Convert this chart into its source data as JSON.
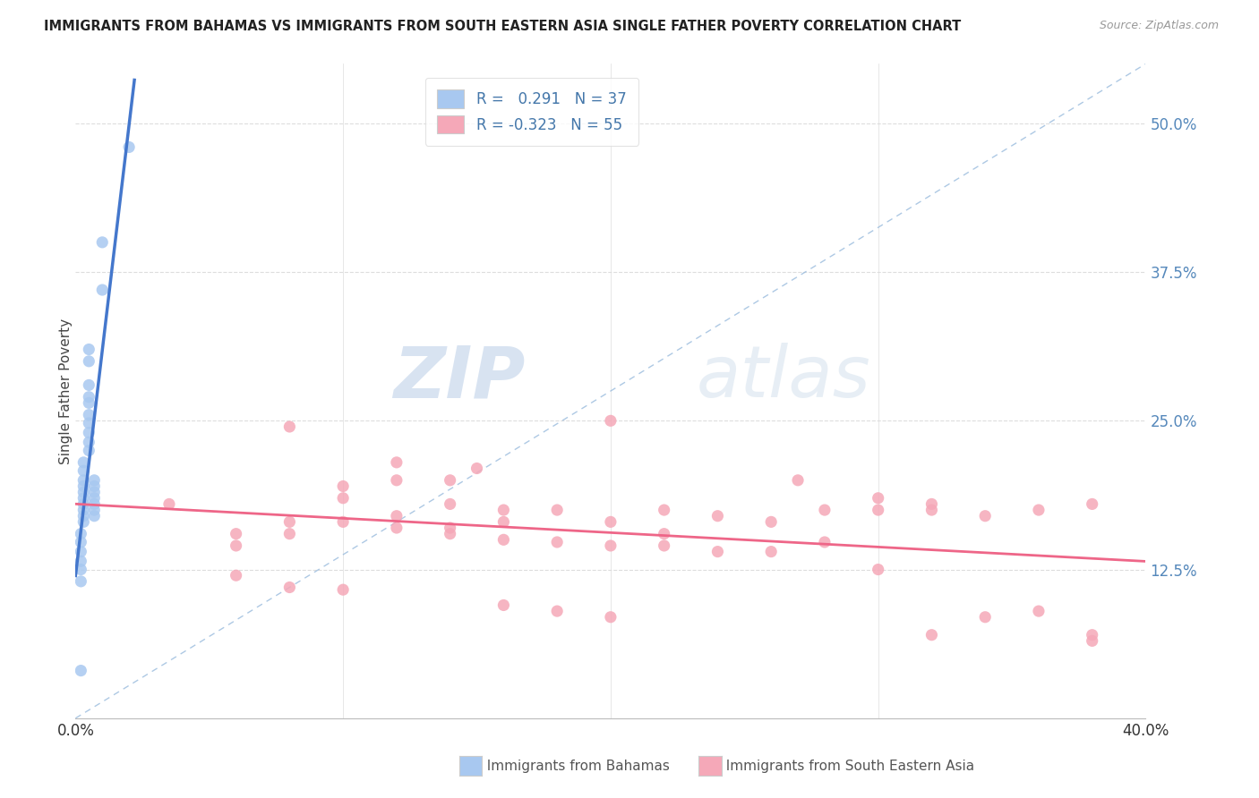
{
  "title": "IMMIGRANTS FROM BAHAMAS VS IMMIGRANTS FROM SOUTH EASTERN ASIA SINGLE FATHER POVERTY CORRELATION CHART",
  "source": "Source: ZipAtlas.com",
  "ylabel": "Single Father Poverty",
  "ytick_labels": [
    "50.0%",
    "37.5%",
    "25.0%",
    "12.5%"
  ],
  "ytick_values": [
    0.5,
    0.375,
    0.25,
    0.125
  ],
  "xlim": [
    0.0,
    0.4
  ],
  "ylim": [
    0.0,
    0.55
  ],
  "legend_R1": "0.291",
  "legend_N1": "37",
  "legend_R2": "-0.323",
  "legend_N2": "55",
  "color_bahamas": "#A8C8F0",
  "color_sea": "#F5A8B8",
  "color_line_bahamas": "#4477CC",
  "color_line_sea": "#EE6688",
  "color_diag": "#99BBDD",
  "bahamas_x": [
    0.02,
    0.01,
    0.01,
    0.005,
    0.005,
    0.005,
    0.005,
    0.005,
    0.005,
    0.005,
    0.005,
    0.005,
    0.005,
    0.003,
    0.003,
    0.003,
    0.003,
    0.003,
    0.003,
    0.003,
    0.003,
    0.003,
    0.003,
    0.007,
    0.007,
    0.007,
    0.007,
    0.007,
    0.007,
    0.007,
    0.002,
    0.002,
    0.002,
    0.002,
    0.002,
    0.002,
    0.002
  ],
  "bahamas_y": [
    0.48,
    0.4,
    0.36,
    0.31,
    0.3,
    0.28,
    0.27,
    0.265,
    0.255,
    0.248,
    0.24,
    0.232,
    0.225,
    0.215,
    0.208,
    0.2,
    0.195,
    0.19,
    0.185,
    0.18,
    0.175,
    0.17,
    0.165,
    0.2,
    0.195,
    0.19,
    0.185,
    0.18,
    0.175,
    0.17,
    0.155,
    0.148,
    0.14,
    0.132,
    0.125,
    0.115,
    0.04
  ],
  "sea_x": [
    0.035,
    0.06,
    0.06,
    0.08,
    0.08,
    0.08,
    0.1,
    0.1,
    0.1,
    0.12,
    0.12,
    0.12,
    0.14,
    0.14,
    0.14,
    0.15,
    0.16,
    0.16,
    0.16,
    0.18,
    0.18,
    0.2,
    0.2,
    0.2,
    0.22,
    0.22,
    0.22,
    0.24,
    0.24,
    0.26,
    0.26,
    0.27,
    0.28,
    0.28,
    0.3,
    0.3,
    0.3,
    0.32,
    0.32,
    0.34,
    0.34,
    0.36,
    0.36,
    0.38,
    0.38,
    0.06,
    0.08,
    0.1,
    0.12,
    0.14,
    0.16,
    0.18,
    0.2,
    0.32,
    0.38
  ],
  "sea_y": [
    0.18,
    0.155,
    0.145,
    0.165,
    0.155,
    0.245,
    0.195,
    0.185,
    0.165,
    0.215,
    0.2,
    0.16,
    0.2,
    0.18,
    0.155,
    0.21,
    0.175,
    0.165,
    0.15,
    0.175,
    0.148,
    0.25,
    0.165,
    0.145,
    0.175,
    0.155,
    0.145,
    0.17,
    0.14,
    0.165,
    0.14,
    0.2,
    0.175,
    0.148,
    0.185,
    0.175,
    0.125,
    0.18,
    0.175,
    0.17,
    0.085,
    0.175,
    0.09,
    0.18,
    0.07,
    0.12,
    0.11,
    0.108,
    0.17,
    0.16,
    0.095,
    0.09,
    0.085,
    0.07,
    0.065
  ],
  "watermark_zip": "ZIP",
  "watermark_atlas": "atlas",
  "background_color": "#FFFFFF"
}
